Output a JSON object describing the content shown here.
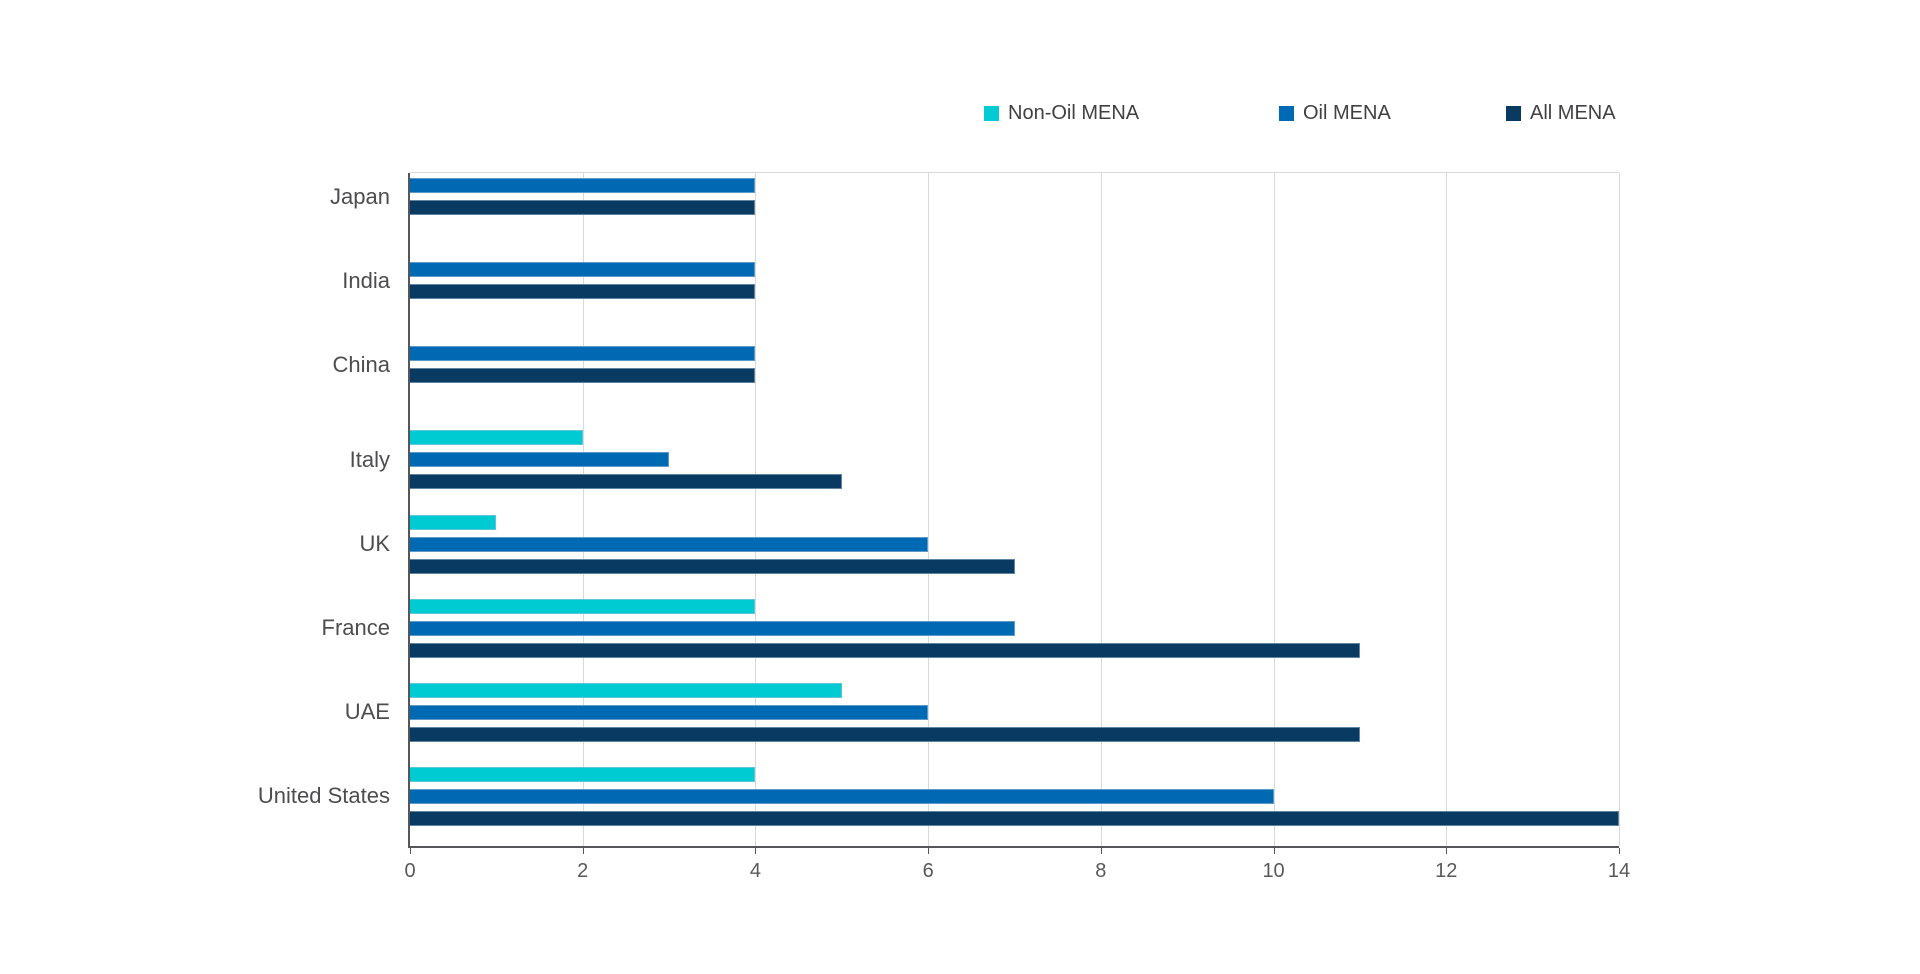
{
  "chart_data": {
    "type": "bar",
    "orientation": "horizontal",
    "title": "",
    "xlabel": "",
    "ylabel": "",
    "categories": [
      "Japan",
      "India",
      "China",
      "Italy",
      "UK",
      "France",
      "UAE",
      "United States"
    ],
    "series": [
      {
        "name": "Non-Oil MENA",
        "color": "#00CBD3",
        "values": [
          null,
          null,
          null,
          2,
          1,
          4,
          5,
          4
        ]
      },
      {
        "name": "Oil MENA",
        "color": "#0069B3",
        "values": [
          4,
          4,
          4,
          3,
          6,
          7,
          6,
          10
        ]
      },
      {
        "name": "All MENA",
        "color": "#093A61",
        "values": [
          4,
          4,
          4,
          5,
          7,
          11,
          11,
          14
        ]
      }
    ],
    "xlim": [
      0,
      14
    ],
    "xticks": [
      0,
      2,
      4,
      6,
      8,
      10,
      12,
      14
    ],
    "grid": true,
    "legend_position": "top"
  },
  "colors": {
    "background": "#FFFFFF",
    "grid": "#D9D9D9",
    "axis": "#55565A",
    "tick_text": "#58595B",
    "category_text": "#4D4D4F",
    "legend_text": "#414042"
  }
}
